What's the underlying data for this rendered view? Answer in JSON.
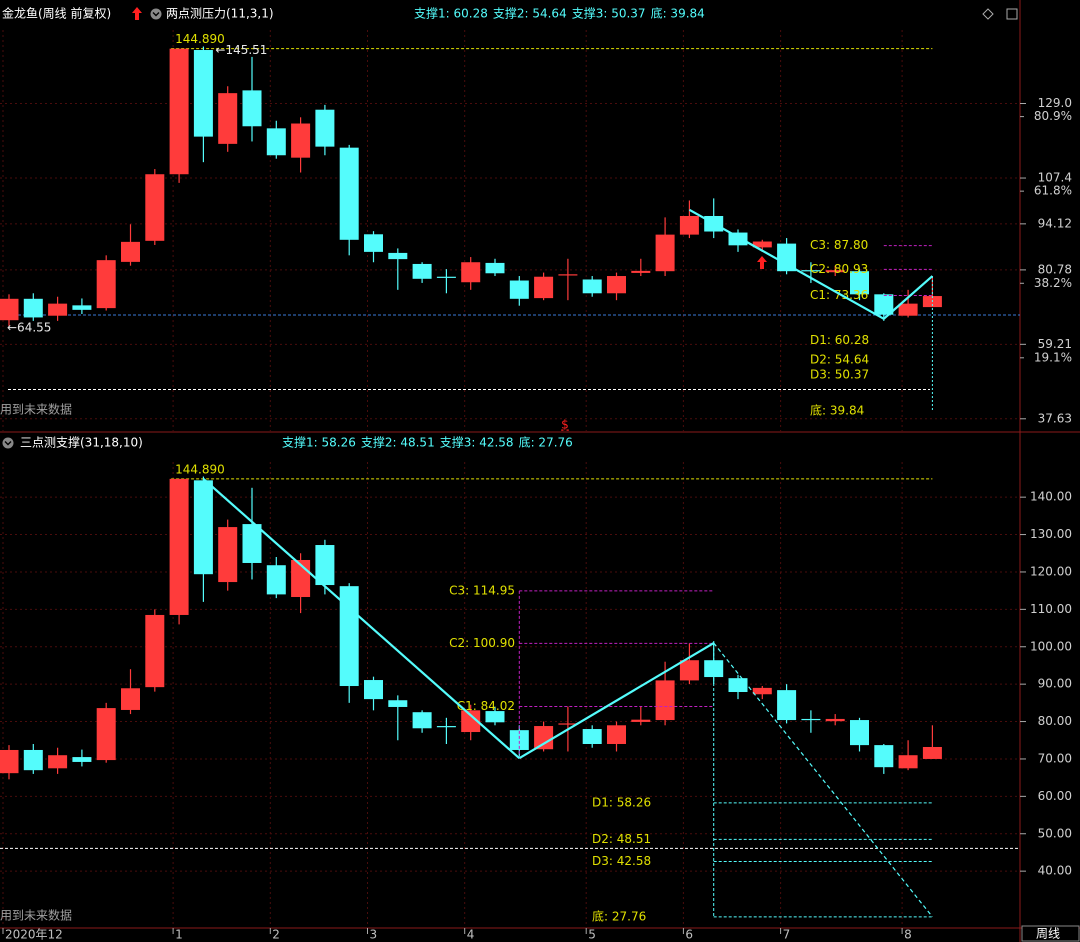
{
  "chart_data": [
    {
      "type": "candlestick",
      "title": "金龙鱼(周线 前复权)",
      "indicator": "两点测压力(11,3,1)",
      "categories": [
        "2020年12",
        null,
        null,
        null,
        null,
        null,
        null,
        "1",
        null,
        null,
        null,
        "2",
        null,
        null,
        null,
        "3",
        null,
        null,
        null,
        "4",
        null,
        null,
        null,
        null,
        "5",
        null,
        null,
        null,
        "6",
        null,
        null,
        null,
        "7",
        null,
        null,
        null,
        null,
        "8",
        null
      ],
      "open": [
        66.2,
        72.4,
        67.5,
        70.5,
        69.7,
        83.1,
        89.2,
        108.5,
        144.5,
        117.3,
        132.8,
        121.8,
        113.3,
        127.2,
        116.2,
        91.1,
        85.7,
        82.5,
        78.8,
        77.2,
        82.8,
        77.7,
        72.6,
        79.3,
        78.0,
        74.0,
        79.9,
        80.4,
        91.0,
        96.4,
        91.6,
        87.3,
        88.4,
        80.7,
        80.1,
        80.4,
        73.7,
        67.5,
        70.0
      ],
      "high": [
        73.7,
        74.0,
        73.0,
        72.5,
        85.0,
        94.0,
        110.0,
        144.89,
        145.51,
        134.0,
        142.5,
        124.0,
        125.0,
        128.6,
        117.0,
        92.0,
        87.0,
        83.0,
        81.0,
        84.5,
        84.0,
        79.0,
        80.0,
        84.0,
        79.0,
        80.0,
        84.0,
        96.0,
        100.9,
        101.5,
        92.5,
        89.5,
        90.0,
        83.0,
        82.0,
        81.0,
        74.0,
        75.0,
        79.0
      ],
      "low": [
        64.55,
        66.0,
        66.0,
        68.0,
        69.0,
        82.0,
        88.0,
        106.0,
        112.0,
        115.0,
        118.0,
        113.0,
        109.0,
        114.0,
        85.0,
        83.0,
        75.0,
        77.0,
        74.0,
        75.0,
        79.0,
        70.4,
        72.0,
        72.0,
        73.0,
        72.0,
        79.0,
        79.0,
        90.0,
        90.0,
        86.0,
        86.0,
        79.5,
        77.0,
        79.0,
        72.0,
        66.0,
        67.0,
        70.0
      ],
      "close": [
        72.4,
        67.0,
        71.0,
        69.2,
        83.6,
        88.9,
        108.5,
        144.89,
        119.4,
        132.0,
        122.4,
        114.0,
        123.2,
        116.5,
        89.5,
        86.0,
        83.9,
        78.2,
        78.5,
        83.0,
        79.8,
        72.4,
        78.8,
        79.5,
        74.0,
        79.0,
        80.5,
        91.0,
        96.4,
        91.9,
        87.9,
        89.0,
        80.4,
        80.6,
        80.7,
        73.7,
        67.8,
        71.0,
        73.2
      ],
      "up_color": "#ff3b3b",
      "down_color": "#54fcfc",
      "ylim": [
        33.8,
        150.3
      ],
      "yticks": [
        {
          "value": 129,
          "label": "129.0"
        },
        107.4,
        94.12,
        80.78,
        59.21,
        37.63
      ],
      "fib_ticks": [
        {
          "value": 125.2,
          "label": "80.9%"
        },
        {
          "value": 103.6,
          "label": "61.8%"
        },
        {
          "value": 76.9,
          "label": "38.2%"
        },
        {
          "value": 55.3,
          "label": "19.1%"
        }
      ],
      "support_legend": [
        {
          "value": 60.28,
          "label": "支撑1: 60.28"
        },
        {
          "value": 54.64,
          "label": "支撑2: 54.64"
        },
        {
          "value": 50.37,
          "label": "支撑3: 50.37"
        },
        {
          "value": 39.84,
          "label": "底: 39.84"
        }
      ],
      "high_label": {
        "value": 144.89,
        "label": "144.890"
      },
      "price_marks": [
        {
          "index": 8,
          "value": 145.51,
          "label": "←145.51"
        },
        {
          "index": 0,
          "value": 64.55,
          "label": "←64.55"
        }
      ],
      "c_levels": [
        {
          "value": 87.8,
          "label": "C3: 87.80"
        },
        {
          "value": 80.93,
          "label": "C2: 80.93"
        },
        {
          "value": 73.36,
          "label": "C1: 73.36"
        }
      ],
      "d_levels": [
        {
          "value": 60.28,
          "label": "D1: 60.28"
        },
        {
          "value": 54.64,
          "label": "D2: 54.64"
        },
        {
          "value": 50.37,
          "label": "D3: 50.37"
        },
        {
          "value": 39.84,
          "label": "底: 39.84"
        }
      ],
      "trend": {
        "index": [
          28,
          36,
          38
        ],
        "values": [
          98.2,
          66.6,
          79.0
        ],
        "dashed_last": false
      },
      "ref_lines": [
        {
          "value": 67.7,
          "color": "#3a7ad8"
        },
        {
          "value": 46.1,
          "color": "#ffffff"
        }
      ],
      "marker": "$",
      "note": "用到未来数据"
    },
    {
      "type": "candlestick",
      "indicator": "三点测支撑(31,18,10)",
      "ylim": [
        24.8,
        149.4
      ],
      "yticks": [
        {
          "value": 140,
          "label": "140.00"
        },
        {
          "value": 130,
          "label": "130.00"
        },
        {
          "value": 120,
          "label": "120.00"
        },
        {
          "value": 110,
          "label": "110.00"
        },
        {
          "value": 100,
          "label": "100.00"
        },
        {
          "value": 90,
          "label": "90.00"
        },
        {
          "value": 80,
          "label": "80.00"
        },
        {
          "value": 70,
          "label": "70.00"
        },
        {
          "value": 60,
          "label": "60.00"
        },
        {
          "value": 50,
          "label": "50.00"
        },
        {
          "value": 40,
          "label": "40.00"
        }
      ],
      "support_legend": [
        {
          "value": 58.26,
          "label": "支撑1: 58.26"
        },
        {
          "value": 48.51,
          "label": "支撑2: 48.51"
        },
        {
          "value": 42.58,
          "label": "支撑3: 42.58"
        },
        {
          "value": 27.76,
          "label": "底: 27.76"
        }
      ],
      "high_label": {
        "value": 144.89,
        "label": "144.890"
      },
      "c_levels": [
        {
          "value": 114.95,
          "label": "C3: 114.95"
        },
        {
          "value": 100.9,
          "label": "C2: 100.90"
        },
        {
          "value": 84.02,
          "label": "C1: 84.02"
        }
      ],
      "d_levels": [
        {
          "value": 58.26,
          "label": "D1: 58.26"
        },
        {
          "value": 48.51,
          "label": "D2: 48.51"
        },
        {
          "value": 42.58,
          "label": "D3: 42.58"
        },
        {
          "value": 27.76,
          "label": "底: 27.76"
        }
      ],
      "trend": {
        "index": [
          8,
          21,
          29,
          38
        ],
        "values": [
          144.89,
          70.2,
          101.0,
          27.8
        ],
        "dashed_last": true
      },
      "ref_lines": [
        {
          "value": 46.1,
          "color": "#ffffff"
        }
      ],
      "note": "用到未来数据"
    }
  ],
  "period_label": "周线"
}
